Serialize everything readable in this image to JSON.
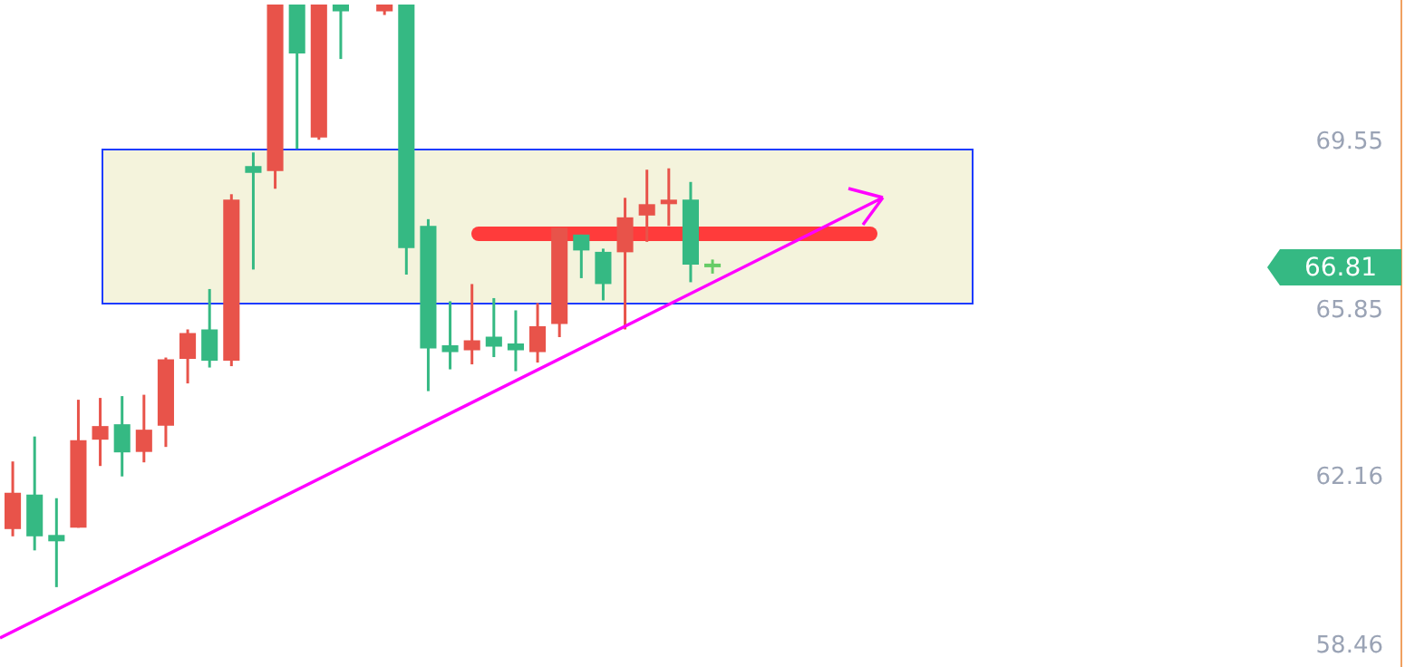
{
  "chart_data": {
    "type": "candlestick",
    "categories": [
      null,
      null,
      null,
      null,
      null,
      null,
      null,
      null,
      null,
      null,
      null,
      null,
      null,
      null,
      null,
      null,
      null,
      null,
      null,
      null,
      null,
      null,
      null,
      null,
      null,
      null,
      null,
      null,
      null,
      null,
      null,
      null,
      null,
      null,
      null,
      null,
      null,
      null,
      null,
      null,
      null,
      null,
      null,
      null,
      null,
      null,
      null,
      null,
      null,
      null,
      null,
      null,
      null,
      null,
      null,
      null,
      null,
      null,
      null,
      null,
      null,
      null,
      null,
      null
    ],
    "ohlc": [
      [
        61.04,
        62.53,
        60.88,
        61.84
      ],
      [
        61.8,
        63.08,
        60.57,
        60.88
      ],
      [
        60.91,
        61.72,
        59.76,
        60.77
      ],
      [
        61.07,
        63.89,
        61.07,
        63.0
      ],
      [
        63.01,
        63.93,
        62.43,
        63.31
      ],
      [
        63.35,
        63.97,
        62.2,
        62.73
      ],
      [
        62.74,
        64.0,
        62.51,
        63.23
      ],
      [
        63.32,
        64.82,
        62.85,
        64.78
      ],
      [
        64.79,
        65.44,
        64.25,
        65.36
      ],
      [
        65.44,
        66.33,
        64.6,
        64.75
      ],
      [
        64.75,
        68.42,
        64.63,
        68.3
      ],
      [
        69.04,
        69.34,
        66.76,
        68.89
      ],
      [
        68.93,
        72.6,
        68.54,
        72.6
      ],
      [
        72.6,
        72.6,
        69.42,
        71.52
      ],
      [
        69.67,
        72.6,
        69.62,
        72.6
      ],
      [
        72.6,
        72.6,
        71.4,
        72.45
      ],
      null,
      [
        72.45,
        72.6,
        72.37,
        72.6
      ],
      [
        72.6,
        72.6,
        66.65,
        67.23
      ],
      [
        67.72,
        67.87,
        64.08,
        65.02
      ],
      [
        65.09,
        66.06,
        64.56,
        64.94
      ],
      [
        64.98,
        66.44,
        64.67,
        65.2
      ],
      [
        65.28,
        66.13,
        64.83,
        65.06
      ],
      [
        65.13,
        65.86,
        64.52,
        64.98
      ],
      [
        64.94,
        66.02,
        64.71,
        65.51
      ],
      [
        65.56,
        67.68,
        65.27,
        67.68
      ],
      [
        67.53,
        67.53,
        66.57,
        67.18
      ],
      [
        67.15,
        67.22,
        66.08,
        66.44
      ],
      [
        67.14,
        68.34,
        65.44,
        67.91
      ],
      [
        67.95,
        68.96,
        67.37,
        68.2
      ],
      [
        68.2,
        68.99,
        67.72,
        68.3
      ],
      [
        68.3,
        68.69,
        66.48,
        66.87
      ],
      [
        66.89,
        66.98,
        66.67,
        66.81
      ],
      null,
      null,
      null,
      null,
      null,
      null,
      null,
      null,
      null,
      null,
      null,
      null,
      null,
      null,
      null,
      null,
      null,
      null,
      null,
      null,
      null,
      null,
      null,
      null,
      null,
      null,
      null,
      null,
      null,
      null,
      null
    ],
    "colors": [
      "#e8534a",
      "#35b983",
      "#35b983",
      "#e8534a",
      "#e8534a",
      "#35b983",
      "#e8534a",
      "#e8534a",
      "#e8534a",
      "#35b983",
      "#e8534a",
      "#35b983",
      "#e8534a",
      "#35b983",
      "#e8534a",
      "#35b983",
      null,
      "#e8534a",
      "#35b983",
      "#35b983",
      "#35b983",
      "#e8534a",
      "#35b983",
      "#35b983",
      "#e8534a",
      "#e8534a",
      "#35b983",
      "#35b983",
      "#e8534a",
      "#e8534a",
      "#e8534a",
      "#35b983",
      "#66cc66",
      null,
      null,
      null,
      null,
      null,
      null,
      null,
      null,
      null,
      null,
      null,
      null,
      null,
      null,
      null,
      null,
      null,
      null,
      null,
      null,
      null,
      null,
      null,
      null,
      null,
      null,
      null,
      null,
      null,
      null,
      null
    ],
    "ylim": [
      58.0,
      72.7
    ],
    "yticks": [
      58.46,
      62.16,
      65.85,
      69.55
    ],
    "tick_labels": "y",
    "annotations": [
      "66.81"
    ]
  }
}
